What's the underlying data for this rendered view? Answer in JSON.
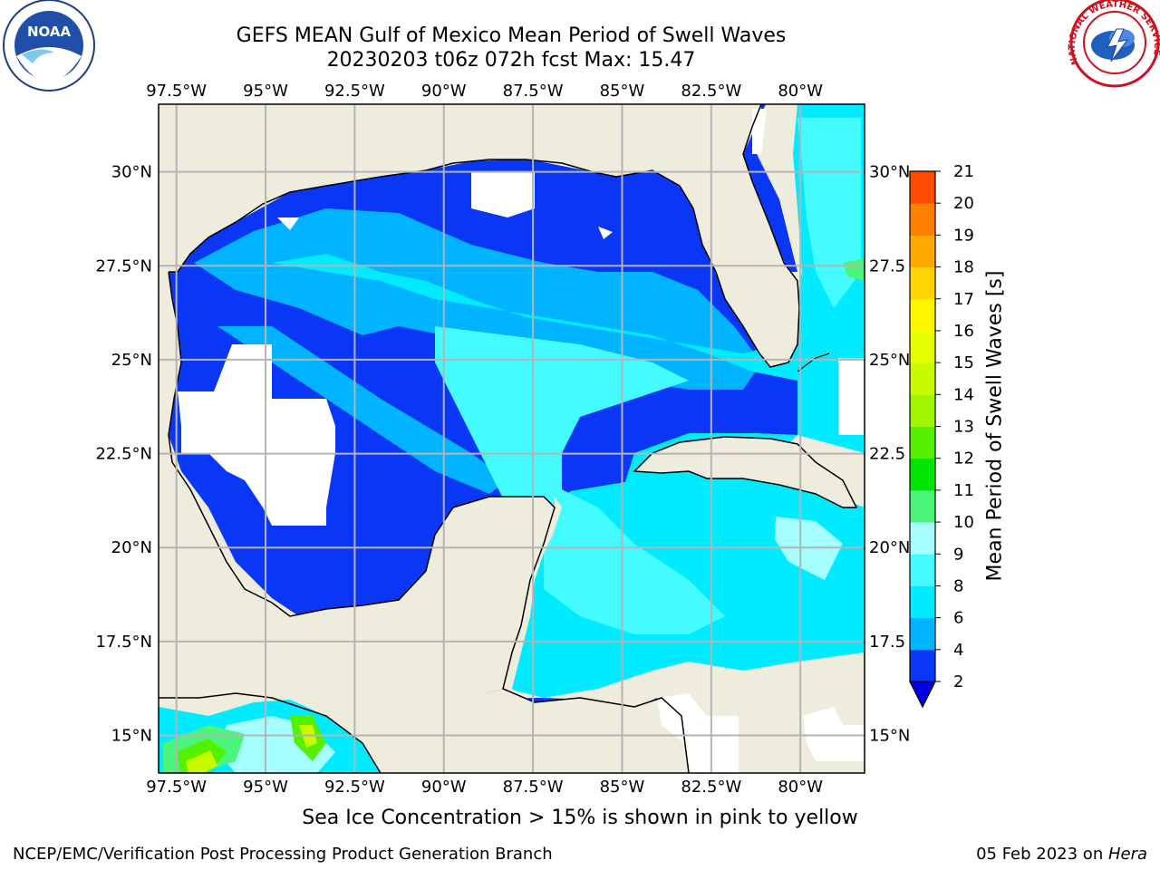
{
  "header": {
    "title_line1": "GEFS MEAN Gulf of Mexico Mean Period of Swell Waves",
    "title_line2": "20230203 t06z 072h fcst   Max: 15.47"
  },
  "logos": {
    "left": {
      "name": "noaa-logo",
      "text": "NOAA"
    },
    "right": {
      "name": "nws-logo",
      "text": "NATIONAL WEATHER SERVICE"
    }
  },
  "map": {
    "lon_labels": [
      "97.5°W",
      "95°W",
      "92.5°W",
      "90°W",
      "87.5°W",
      "85°W",
      "82.5°W",
      "80°W"
    ],
    "lon_values": [
      -97.5,
      -95,
      -92.5,
      -90,
      -87.5,
      -85,
      -82.5,
      -80
    ],
    "lat_labels_left": [
      "30°N",
      "27.5°N",
      "25°N",
      "22.5°N",
      "20°N",
      "17.5°N",
      "15°N"
    ],
    "lat_labels_right": [
      "30°N",
      "27.5",
      "25°N",
      "22.5",
      "20°N",
      "17.5",
      "15°N"
    ],
    "lat_values": [
      30,
      27.5,
      25,
      22.5,
      20,
      17.5,
      15
    ],
    "extent": {
      "lon_min": -98,
      "lon_max": -78.2,
      "lat_min": 14,
      "lat_max": 31.8
    }
  },
  "colorbar": {
    "label": "Mean Period of Swell Waves [s]",
    "ticks": [
      "2",
      "4",
      "6",
      "8",
      "9",
      "10",
      "11",
      "12",
      "13",
      "14",
      "15",
      "16",
      "17",
      "18",
      "19",
      "20",
      "21"
    ],
    "colors": [
      "#0a37f5",
      "#00b4ff",
      "#00ebff",
      "#44fcff",
      "#a6ffff",
      "#4bf57a",
      "#00e600",
      "#55f000",
      "#a0f500",
      "#c8fa00",
      "#e6ff00",
      "#fff500",
      "#ffd400",
      "#ffa800",
      "#ff7f00",
      "#ff4b00",
      "#ff1e00"
    ],
    "extend_color": "#0000e6"
  },
  "colors": {
    "land": "#eeeddd",
    "missing": "#ffffff",
    "grid": "#b4b4b4",
    "coast": "#000000"
  },
  "note": "Sea Ice Concentration > 15% is shown in pink to yellow",
  "footer": {
    "left": "NCEP/EMC/Verification Post Processing Product Generation Branch",
    "right_date": "05 Feb 2023 on ",
    "right_host": "Hera"
  }
}
